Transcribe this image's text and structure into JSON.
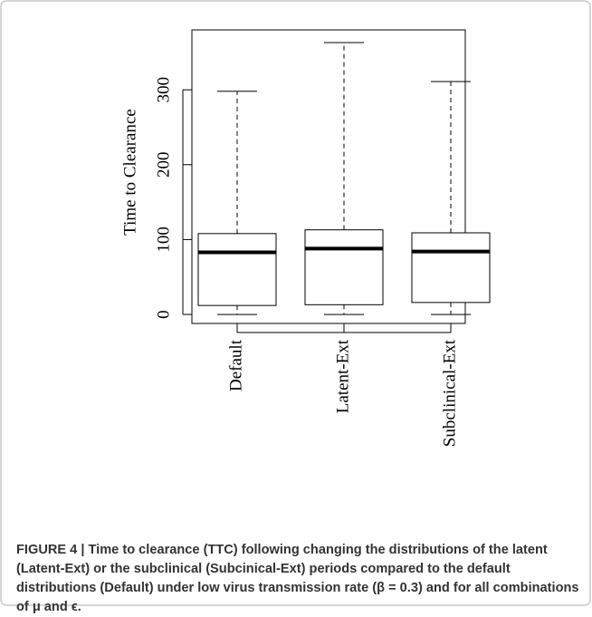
{
  "chart_data": {
    "type": "boxplot",
    "ylabel": "Time to Clearance",
    "categories": [
      "Default",
      "Latent-Ext",
      "Subclinical-Ext"
    ],
    "boxes": [
      {
        "min": 0,
        "q1": 12,
        "median": 83,
        "q3": 108,
        "max": 298
      },
      {
        "min": 0,
        "q1": 13,
        "median": 88,
        "q3": 113,
        "max": 363
      },
      {
        "min": 0,
        "q1": 16,
        "median": 84,
        "q3": 109,
        "max": 311
      }
    ],
    "color": "#000000",
    "ylim": [
      -12,
      380
    ],
    "yticks": [
      0,
      100,
      200,
      300
    ]
  },
  "caption": "FIGURE 4 | Time to clearance (TTC) following changing the distributions of the latent (Latent-Ext) or the subclinical (Subcinical-Ext) periods compared to the default distributions (Default) under low virus transmission rate (β = 0.3) and for all combinations of μ and ϵ."
}
